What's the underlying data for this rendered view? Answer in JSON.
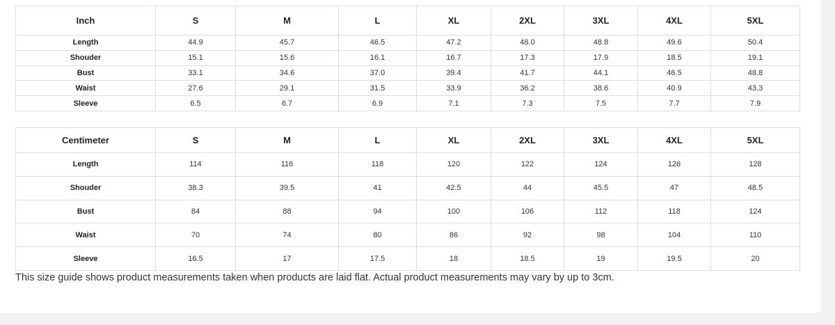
{
  "tables": [
    {
      "header": [
        "Inch",
        "S",
        "M",
        "L",
        "XL",
        "2XL",
        "3XL",
        "4XL",
        "5XL"
      ],
      "rows": [
        [
          "Length",
          "44.9",
          "45.7",
          "46.5",
          "47.2",
          "48.0",
          "48.8",
          "49.6",
          "50.4"
        ],
        [
          "Shouder",
          "15.1",
          "15.6",
          "16.1",
          "16.7",
          "17.3",
          "17.9",
          "18.5",
          "19.1"
        ],
        [
          "Bust",
          "33.1",
          "34.6",
          "37.0",
          "39.4",
          "41.7",
          "44.1",
          "46.5",
          "48.8"
        ],
        [
          "Waist",
          "27.6",
          "29.1",
          "31.5",
          "33.9",
          "36.2",
          "38.6",
          "40.9",
          "43.3"
        ],
        [
          "Sleeve",
          "6.5",
          "6.7",
          "6.9",
          "7.1",
          "7.3",
          "7.5",
          "7.7",
          "7.9"
        ]
      ]
    },
    {
      "header": [
        "Centimeter",
        "S",
        "M",
        "L",
        "XL",
        "2XL",
        "3XL",
        "4XL",
        "5XL"
      ],
      "rows": [
        [
          "Length",
          "114",
          "116",
          "118",
          "120",
          "122",
          "124",
          "126",
          "128"
        ],
        [
          "Shouder",
          "38.3",
          "39.5",
          "41",
          "42.5",
          "44",
          "45.5",
          "47",
          "48.5"
        ],
        [
          "Bust",
          "84",
          "88",
          "94",
          "100",
          "106",
          "112",
          "118",
          "124"
        ],
        [
          "Waist",
          "70",
          "74",
          "80",
          "86",
          "92",
          "98",
          "104",
          "110"
        ],
        [
          "Sleeve",
          "16.5",
          "17",
          "17.5",
          "18",
          "18.5",
          "19",
          "19.5",
          "20"
        ]
      ]
    }
  ],
  "note": "This size guide shows product measurements taken when products are laid flat. Actual product measurements may vary by up to 3cm."
}
